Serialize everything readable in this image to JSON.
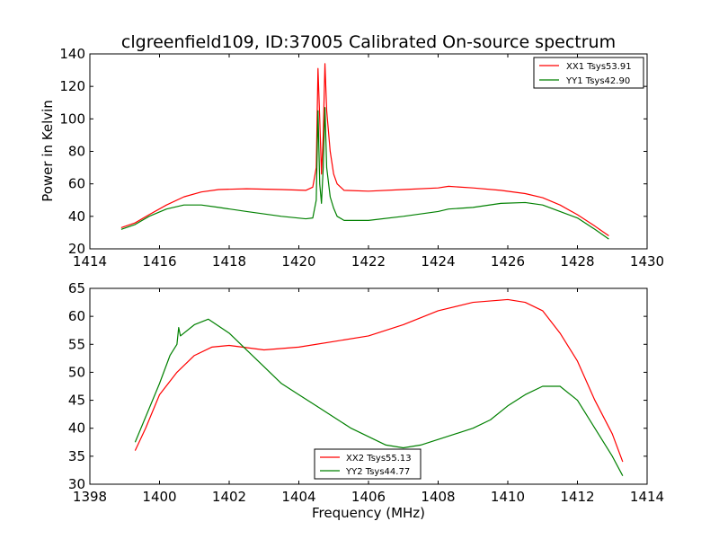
{
  "chart_data": [
    {
      "type": "line",
      "title": "clgreenfield109, ID:37005 Calibrated On-source spectrum",
      "xlabel": "",
      "ylabel": "Power in Kelvin",
      "xlim": [
        1414,
        1430
      ],
      "ylim": [
        20,
        140
      ],
      "xticks": [
        "1414",
        "1416",
        "1418",
        "1420",
        "1422",
        "1424",
        "1426",
        "1428",
        "1430"
      ],
      "yticks": [
        "20",
        "40",
        "60",
        "80",
        "100",
        "120",
        "140"
      ],
      "legend_position": "top-right",
      "grid": false,
      "series": [
        {
          "name": "XX1 Tsys53.91",
          "color": "#ff0000",
          "points": [
            [
              1414.9,
              33
            ],
            [
              1415.3,
              36
            ],
            [
              1415.7,
              41
            ],
            [
              1416.2,
              47
            ],
            [
              1416.7,
              52
            ],
            [
              1417.2,
              55
            ],
            [
              1417.7,
              56.5
            ],
            [
              1418.5,
              57
            ],
            [
              1419.5,
              56.5
            ],
            [
              1420.2,
              56
            ],
            [
              1420.4,
              58
            ],
            [
              1420.5,
              70
            ],
            [
              1420.55,
              131
            ],
            [
              1420.6,
              100
            ],
            [
              1420.65,
              66
            ],
            [
              1420.7,
              90
            ],
            [
              1420.75,
              134
            ],
            [
              1420.8,
              105
            ],
            [
              1420.9,
              80
            ],
            [
              1421.0,
              66
            ],
            [
              1421.1,
              60
            ],
            [
              1421.3,
              56
            ],
            [
              1422,
              55.5
            ],
            [
              1423,
              56.5
            ],
            [
              1424,
              57.5
            ],
            [
              1424.3,
              58.5
            ],
            [
              1425,
              57.5
            ],
            [
              1425.8,
              56
            ],
            [
              1426.5,
              54
            ],
            [
              1427.0,
              51.5
            ],
            [
              1427.5,
              47
            ],
            [
              1428.0,
              41
            ],
            [
              1428.5,
              34
            ],
            [
              1428.9,
              28
            ]
          ]
        },
        {
          "name": "YY1 Tsys42.90",
          "color": "#008000",
          "points": [
            [
              1414.9,
              32
            ],
            [
              1415.3,
              35
            ],
            [
              1415.7,
              40
            ],
            [
              1416.2,
              44.5
            ],
            [
              1416.7,
              47
            ],
            [
              1417.2,
              47
            ],
            [
              1417.7,
              45.5
            ],
            [
              1418.5,
              43
            ],
            [
              1419.5,
              40
            ],
            [
              1420.2,
              38.5
            ],
            [
              1420.4,
              39
            ],
            [
              1420.5,
              50
            ],
            [
              1420.55,
              105
            ],
            [
              1420.6,
              60
            ],
            [
              1420.65,
              48
            ],
            [
              1420.7,
              70
            ],
            [
              1420.75,
              107
            ],
            [
              1420.8,
              70
            ],
            [
              1420.9,
              52
            ],
            [
              1421.0,
              45
            ],
            [
              1421.1,
              40
            ],
            [
              1421.3,
              37.5
            ],
            [
              1422,
              37.5
            ],
            [
              1423,
              40
            ],
            [
              1424,
              43
            ],
            [
              1424.3,
              44.5
            ],
            [
              1425,
              45.5
            ],
            [
              1425.8,
              48
            ],
            [
              1426.5,
              48.5
            ],
            [
              1427.0,
              47
            ],
            [
              1427.5,
              43
            ],
            [
              1428.0,
              39
            ],
            [
              1428.5,
              32
            ],
            [
              1428.9,
              26
            ]
          ]
        }
      ]
    },
    {
      "type": "line",
      "title": "",
      "xlabel": "Frequency (MHz)",
      "ylabel": "",
      "xlim": [
        1398,
        1414
      ],
      "ylim": [
        30,
        65
      ],
      "xticks": [
        "1398",
        "1400",
        "1402",
        "1404",
        "1406",
        "1408",
        "1410",
        "1412",
        "1414"
      ],
      "yticks": [
        "30",
        "35",
        "40",
        "45",
        "50",
        "55",
        "60",
        "65"
      ],
      "legend_position": "bottom-center",
      "grid": false,
      "series": [
        {
          "name": "XX2 Tsys55.13",
          "color": "#ff0000",
          "points": [
            [
              1399.3,
              36
            ],
            [
              1399.6,
              40
            ],
            [
              1400.0,
              46
            ],
            [
              1400.5,
              50
            ],
            [
              1401.0,
              53
            ],
            [
              1401.5,
              54.5
            ],
            [
              1402.0,
              54.8
            ],
            [
              1403.0,
              54
            ],
            [
              1404.0,
              54.5
            ],
            [
              1405.0,
              55.5
            ],
            [
              1406.0,
              56.5
            ],
            [
              1407.0,
              58.5
            ],
            [
              1408.0,
              61
            ],
            [
              1409.0,
              62.5
            ],
            [
              1410.0,
              63
            ],
            [
              1410.5,
              62.5
            ],
            [
              1411.0,
              61
            ],
            [
              1411.5,
              57
            ],
            [
              1412.0,
              52
            ],
            [
              1412.5,
              45
            ],
            [
              1413.0,
              39
            ],
            [
              1413.3,
              34
            ]
          ]
        },
        {
          "name": "YY2 Tsys44.77",
          "color": "#008000",
          "points": [
            [
              1399.3,
              37.5
            ],
            [
              1399.6,
              42
            ],
            [
              1400.0,
              48
            ],
            [
              1400.3,
              53
            ],
            [
              1400.5,
              55
            ],
            [
              1400.55,
              58
            ],
            [
              1400.6,
              56.5
            ],
            [
              1401.0,
              58.5
            ],
            [
              1401.4,
              59.5
            ],
            [
              1402.0,
              57
            ],
            [
              1402.5,
              54
            ],
            [
              1403.0,
              51
            ],
            [
              1403.5,
              48
            ],
            [
              1404.0,
              46
            ],
            [
              1404.5,
              44
            ],
            [
              1405.0,
              42
            ],
            [
              1405.5,
              40
            ],
            [
              1406.0,
              38.5
            ],
            [
              1406.5,
              37
            ],
            [
              1407.0,
              36.5
            ],
            [
              1407.5,
              37
            ],
            [
              1408.0,
              38
            ],
            [
              1408.5,
              39
            ],
            [
              1409.0,
              40
            ],
            [
              1409.5,
              41.5
            ],
            [
              1410.0,
              44
            ],
            [
              1410.5,
              46
            ],
            [
              1411.0,
              47.5
            ],
            [
              1411.5,
              47.5
            ],
            [
              1412.0,
              45
            ],
            [
              1412.5,
              40
            ],
            [
              1413.0,
              35
            ],
            [
              1413.3,
              31.5
            ]
          ]
        }
      ]
    }
  ]
}
